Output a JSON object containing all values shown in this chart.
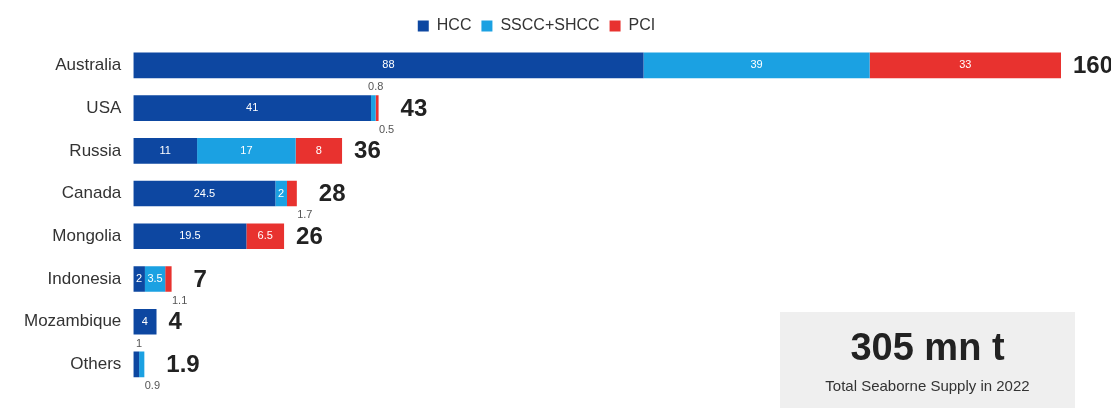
{
  "chart_data": {
    "type": "bar",
    "orientation": "horizontal",
    "stacked": true,
    "data_labels": true,
    "legend": "top",
    "grid": false,
    "tick_labels": "y",
    "categories": [
      "Australia",
      "USA",
      "Russia",
      "Canada",
      "Mongolia",
      "Indonesia",
      "Mozambique",
      "Others"
    ],
    "xlim": [
      0,
      160
    ],
    "series": [
      {
        "name": "HCC",
        "color": "#0d47a1",
        "values": [
          88,
          41,
          11,
          24.5,
          19.5,
          2,
          4,
          1
        ]
      },
      {
        "name": "SSCC+SHCC",
        "color": "#1ba1e2",
        "values": [
          39,
          0.8,
          17,
          2,
          null,
          3.5,
          null,
          0.9
        ]
      },
      {
        "name": "PCI",
        "color": "#e8322f",
        "values": [
          33,
          0.5,
          8,
          1.7,
          6.5,
          1.1,
          null,
          null
        ]
      }
    ],
    "totals": [
      "160",
      "43",
      "36",
      "28",
      "26",
      "7",
      "4",
      "1.9"
    ],
    "annotations": [
      "305 mn t",
      "Total Seaborne Supply in 2022"
    ]
  }
}
